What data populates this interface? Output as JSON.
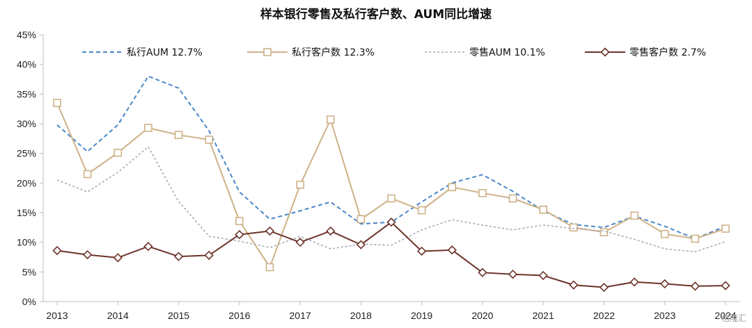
{
  "chart_data": {
    "type": "line",
    "title": "样本银行零售及私行客户数、AUM同比增速",
    "xlabel": "",
    "ylabel": "",
    "ylim": [
      0,
      45
    ],
    "y_ticks": [
      "0%",
      "5%",
      "10%",
      "15%",
      "20%",
      "25%",
      "30%",
      "35%",
      "40%",
      "45%"
    ],
    "categories": [
      "2013",
      "2013H2",
      "2014",
      "2014H2",
      "2015",
      "2015H2",
      "2016",
      "2016H2",
      "2017",
      "2017H2",
      "2018",
      "2018H2",
      "2019",
      "2019H2",
      "2020",
      "2020H2",
      "2021",
      "2021H2",
      "2022",
      "2022H2",
      "2023",
      "2023H2",
      "2024"
    ],
    "x_tick_labels": [
      "2013",
      "2014",
      "2015",
      "2016",
      "2017",
      "2018",
      "2019",
      "2020",
      "2021",
      "2022",
      "2023",
      "2024"
    ],
    "legend_position": "top",
    "grid": false,
    "series": [
      {
        "name": "私行AUM 12.7%",
        "style": "dashed",
        "color": "#4a86c8",
        "values": [
          29.8,
          25.3,
          29.8,
          38.0,
          36.0,
          28.8,
          18.5,
          13.9,
          15.3,
          16.8,
          13.1,
          13.4,
          16.8,
          20.0,
          21.4,
          18.6,
          15.3,
          13.0,
          12.5,
          14.4,
          12.7,
          10.6,
          12.7
        ]
      },
      {
        "name": "私行客户数 12.3%",
        "style": "square-marker",
        "color": "#cdb286",
        "values": [
          33.5,
          21.5,
          25.1,
          29.3,
          28.1,
          27.3,
          13.6,
          5.8,
          19.7,
          30.7,
          13.9,
          17.4,
          15.4,
          19.3,
          18.3,
          17.4,
          15.5,
          12.5,
          11.7,
          14.5,
          11.4,
          10.6,
          12.3
        ]
      },
      {
        "name": "零售AUM 10.1%",
        "style": "dotted",
        "color": "#a8a8b8",
        "values": [
          20.5,
          18.5,
          21.8,
          26.1,
          16.9,
          11.0,
          10.2,
          9.1,
          11.0,
          8.9,
          9.7,
          9.5,
          12.1,
          13.8,
          12.9,
          12.1,
          12.9,
          12.3,
          11.9,
          10.5,
          8.9,
          8.4,
          10.1
        ]
      },
      {
        "name": "零售客户数 2.7%",
        "style": "diamond-marker",
        "color": "#6b3329",
        "values": [
          8.6,
          7.9,
          7.4,
          9.3,
          7.6,
          7.8,
          11.3,
          11.9,
          10.0,
          11.9,
          9.6,
          13.4,
          8.5,
          8.7,
          4.9,
          4.6,
          4.4,
          2.8,
          2.4,
          3.3,
          3.0,
          2.6,
          2.7
        ]
      }
    ]
  },
  "watermark": "格隆汇"
}
